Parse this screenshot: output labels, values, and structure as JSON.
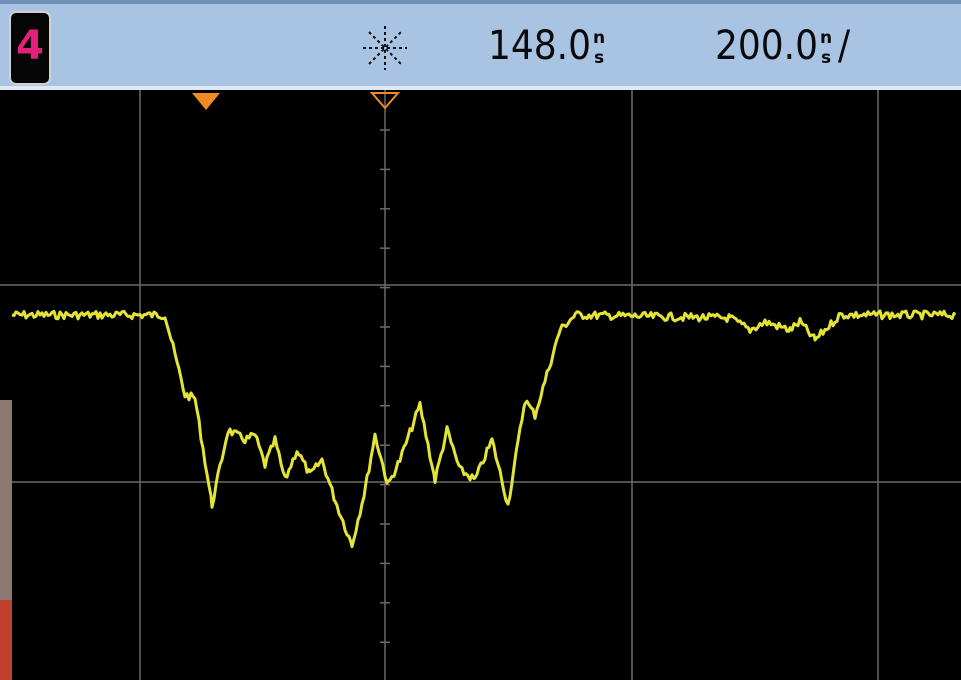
{
  "header": {
    "channel": "4",
    "delay": "148.0",
    "delay_unit_top": "n",
    "delay_unit_bottom": "s",
    "timebase": "200.0",
    "timebase_unit_top": "n",
    "timebase_unit_bottom": "s",
    "timebase_suffix": "/"
  }
}
